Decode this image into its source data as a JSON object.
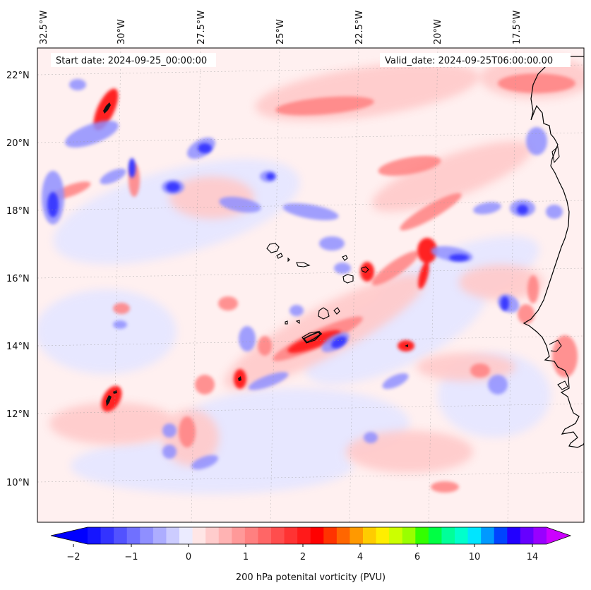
{
  "header": {
    "start_date": "Start date: 2024-09-25_00:00:00",
    "valid_date": "Valid_date: 2024-09-25T06:00:00.00"
  },
  "longitude_ticks": [
    "32.5°W",
    "30°W",
    "27.5°W",
    "25°W",
    "22.5°W",
    "20°W",
    "17.5°W"
  ],
  "latitude_ticks": [
    "22°N",
    "20°N",
    "18°N",
    "16°N",
    "14°N",
    "12°N",
    "10°N"
  ],
  "colorbar": {
    "label": "200 hPa potenital vorticity (PVU)",
    "tick_labels": [
      "−2",
      "−1",
      "0",
      "1",
      "2",
      "4",
      "6",
      "10",
      "14"
    ],
    "colors": [
      "#1515ff",
      "#3333ff",
      "#5252ff",
      "#7070ff",
      "#8f8fff",
      "#adadff",
      "#ccccff",
      "#ebebff",
      "#ffe6e6",
      "#ffcccc",
      "#ffb3b3",
      "#ff9999",
      "#ff8080",
      "#ff6666",
      "#ff4d4d",
      "#ff3333",
      "#ff1a1a",
      "#ff0000",
      "#ff3300",
      "#ff6600",
      "#ff9900",
      "#ffcc00",
      "#ffee00",
      "#ccff00",
      "#99ff00",
      "#33ff00",
      "#00ff44",
      "#00ff99",
      "#00ffcc",
      "#00e5ff",
      "#0099ff",
      "#0044ff",
      "#2200ff",
      "#6600ff",
      "#9900ff"
    ],
    "under_color": "#0000ff",
    "over_color": "#cc00ff"
  },
  "chart_data": {
    "type": "map",
    "variable": "200 hPa potential vorticity",
    "units": "PVU",
    "extent": {
      "lon": [
        -33,
        -15.5
      ],
      "lat": [
        8.9,
        22.8
      ]
    },
    "features": [
      {
        "name": "strong positive PV maximum",
        "lon": -30.2,
        "lat": 21.2,
        "value": 2.5
      },
      {
        "name": "strong positive PV maximum",
        "lon": -30.6,
        "lat": 12.5,
        "value": 2.5
      },
      {
        "name": "positive PV band (Cape Verde)",
        "lon": -23.6,
        "lat": 14.4,
        "value": 2.0
      },
      {
        "name": "positive PV maximum",
        "lon": -20.8,
        "lat": 14.0,
        "value": 2.0
      },
      {
        "name": "positive PV maximum",
        "lon": -27.3,
        "lat": 13.1,
        "value": 2.0
      },
      {
        "name": "positive PV maximum",
        "lon": -22.7,
        "lat": 16.2,
        "value": 1.5
      },
      {
        "name": "positive PV maximum",
        "lon": -19.7,
        "lat": 16.8,
        "value": 1.5
      },
      {
        "name": "negative PV minimum",
        "lon": -29.0,
        "lat": 18.6,
        "value": -1.5
      },
      {
        "name": "negative PV minimum",
        "lon": -32.5,
        "lat": 18.2,
        "value": -1.5
      },
      {
        "name": "negative PV minimum",
        "lon": -27.0,
        "lat": 19.9,
        "value": -1.0
      }
    ],
    "coastline": "West Africa (Mauritania, Senegal) and Cape Verde islands"
  }
}
